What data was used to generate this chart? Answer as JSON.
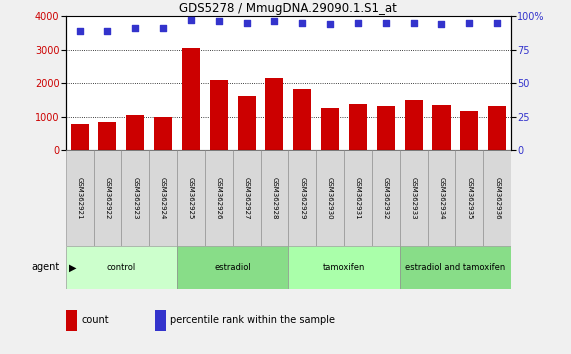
{
  "title": "GDS5278 / MmugDNA.29090.1.S1_at",
  "samples": [
    "GSM362921",
    "GSM362922",
    "GSM362923",
    "GSM362924",
    "GSM362925",
    "GSM362926",
    "GSM362927",
    "GSM362928",
    "GSM362929",
    "GSM362930",
    "GSM362931",
    "GSM362932",
    "GSM362933",
    "GSM362934",
    "GSM362935",
    "GSM362936"
  ],
  "counts": [
    800,
    860,
    1060,
    1000,
    3050,
    2080,
    1620,
    2150,
    1820,
    1250,
    1380,
    1320,
    1490,
    1360,
    1180,
    1320
  ],
  "percentiles": [
    89,
    89,
    91,
    91,
    97,
    96,
    95,
    96,
    95,
    94,
    95,
    95,
    95,
    94,
    95,
    95
  ],
  "bar_color": "#cc0000",
  "dot_color": "#3333cc",
  "groups": [
    {
      "label": "control",
      "start": 0,
      "end": 4,
      "color": "#ccffcc"
    },
    {
      "label": "estradiol",
      "start": 4,
      "end": 8,
      "color": "#88dd88"
    },
    {
      "label": "tamoxifen",
      "start": 8,
      "end": 12,
      "color": "#aaffaa"
    },
    {
      "label": "estradiol and tamoxifen",
      "start": 12,
      "end": 16,
      "color": "#88dd88"
    }
  ],
  "ylim_left": [
    0,
    4000
  ],
  "ylim_right": [
    0,
    100
  ],
  "yticks_left": [
    0,
    1000,
    2000,
    3000,
    4000
  ],
  "yticks_right": [
    0,
    25,
    50,
    75,
    100
  ],
  "agent_label": "agent",
  "bg_color": "#f0f0f0",
  "plot_bg": "#ffffff",
  "tick_label_color_left": "#cc0000",
  "tick_label_color_right": "#3333cc",
  "legend_count_color": "#cc0000",
  "legend_pct_color": "#3333cc"
}
